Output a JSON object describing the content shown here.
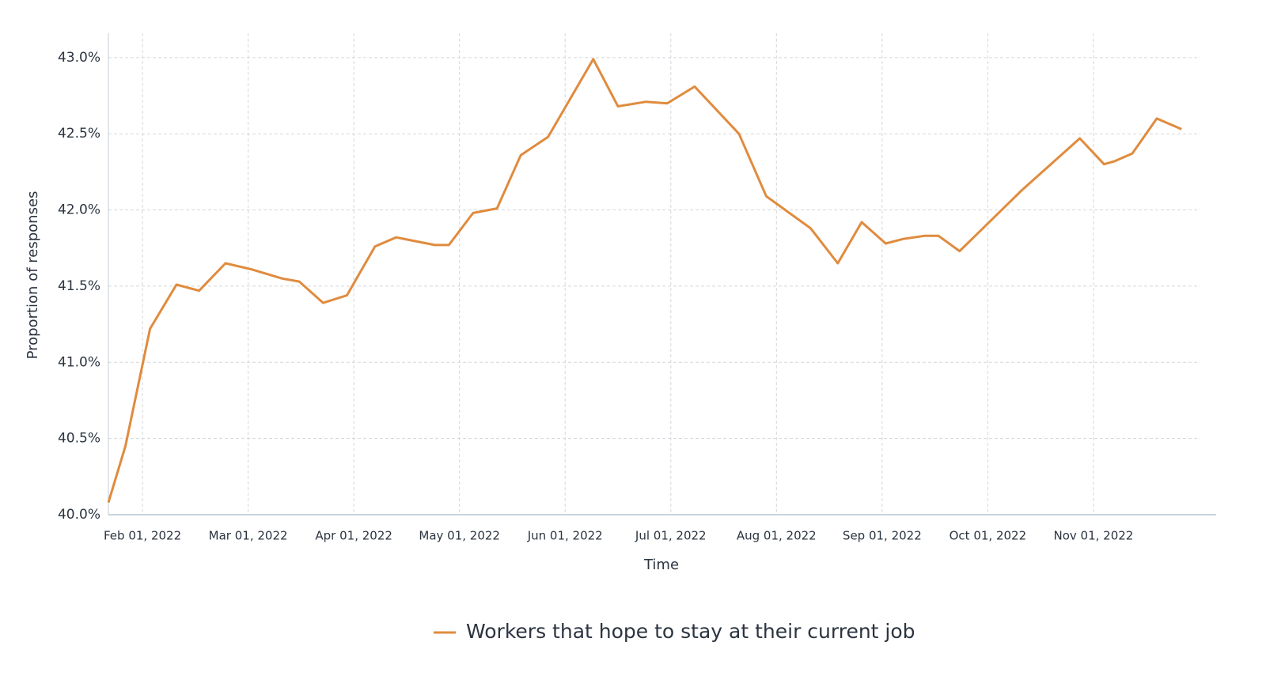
{
  "chart_data": {
    "type": "line",
    "x_label": "Time",
    "y_label": "Proportion of responses",
    "x": [
      "2022-01-22",
      "2022-01-27",
      "2022-02-03",
      "2022-02-10",
      "2022-02-16",
      "2022-02-23",
      "2022-03-02",
      "2022-03-11",
      "2022-03-16",
      "2022-03-23",
      "2022-03-30",
      "2022-04-07",
      "2022-04-13",
      "2022-04-24",
      "2022-04-28",
      "2022-05-05",
      "2022-05-12",
      "2022-05-19",
      "2022-05-27",
      "2022-06-09",
      "2022-06-16",
      "2022-06-24",
      "2022-06-30",
      "2022-07-08",
      "2022-07-21",
      "2022-07-29",
      "2022-08-11",
      "2022-08-19",
      "2022-08-26",
      "2022-09-02",
      "2022-09-07",
      "2022-09-13",
      "2022-09-17",
      "2022-09-23",
      "2022-10-11",
      "2022-10-28",
      "2022-11-04",
      "2022-11-07",
      "2022-11-12",
      "2022-11-19",
      "2022-11-26"
    ],
    "series": [
      {
        "name": "Workers that hope to stay at their current job",
        "color": "#e08b3e",
        "values": [
          40.08,
          40.45,
          41.22,
          41.51,
          41.47,
          41.65,
          41.61,
          41.55,
          41.53,
          41.39,
          41.44,
          41.76,
          41.82,
          41.77,
          41.77,
          41.98,
          42.01,
          42.36,
          42.48,
          42.99,
          42.68,
          42.71,
          42.7,
          42.81,
          42.5,
          42.09,
          41.88,
          41.65,
          41.92,
          41.78,
          41.81,
          41.83,
          41.83,
          41.73,
          42.13,
          42.47,
          42.3,
          42.32,
          42.37,
          42.6,
          42.53
        ]
      }
    ],
    "xlim": [
      "2022-01-22",
      "2022-12-06"
    ],
    "xticks": [
      {
        "value": "2022-02-01",
        "label": "Feb 01, 2022"
      },
      {
        "value": "2022-03-01",
        "label": "Mar 01, 2022"
      },
      {
        "value": "2022-04-01",
        "label": "Apr 01, 2022"
      },
      {
        "value": "2022-05-01",
        "label": "May 01, 2022"
      },
      {
        "value": "2022-06-01",
        "label": "Jun 01, 2022"
      },
      {
        "value": "2022-07-01",
        "label": "Jul 01, 2022"
      },
      {
        "value": "2022-08-01",
        "label": "Aug 01, 2022"
      },
      {
        "value": "2022-09-01",
        "label": "Sep 01, 2022"
      },
      {
        "value": "2022-10-01",
        "label": "Oct 01, 2022"
      },
      {
        "value": "2022-11-01",
        "label": "Nov 01, 2022"
      }
    ],
    "ylim": [
      40.0,
      43.16
    ],
    "yticks": [
      {
        "value": 40,
        "label": "40.0%"
      },
      {
        "value": 40.5,
        "label": "40.5%"
      },
      {
        "value": 41,
        "label": "41.0%"
      },
      {
        "value": 41.5,
        "label": "41.5%"
      },
      {
        "value": 42,
        "label": "42.0%"
      },
      {
        "value": 42.5,
        "label": "42.5%"
      },
      {
        "value": 43,
        "label": "43.0%"
      }
    ],
    "grid": true
  }
}
